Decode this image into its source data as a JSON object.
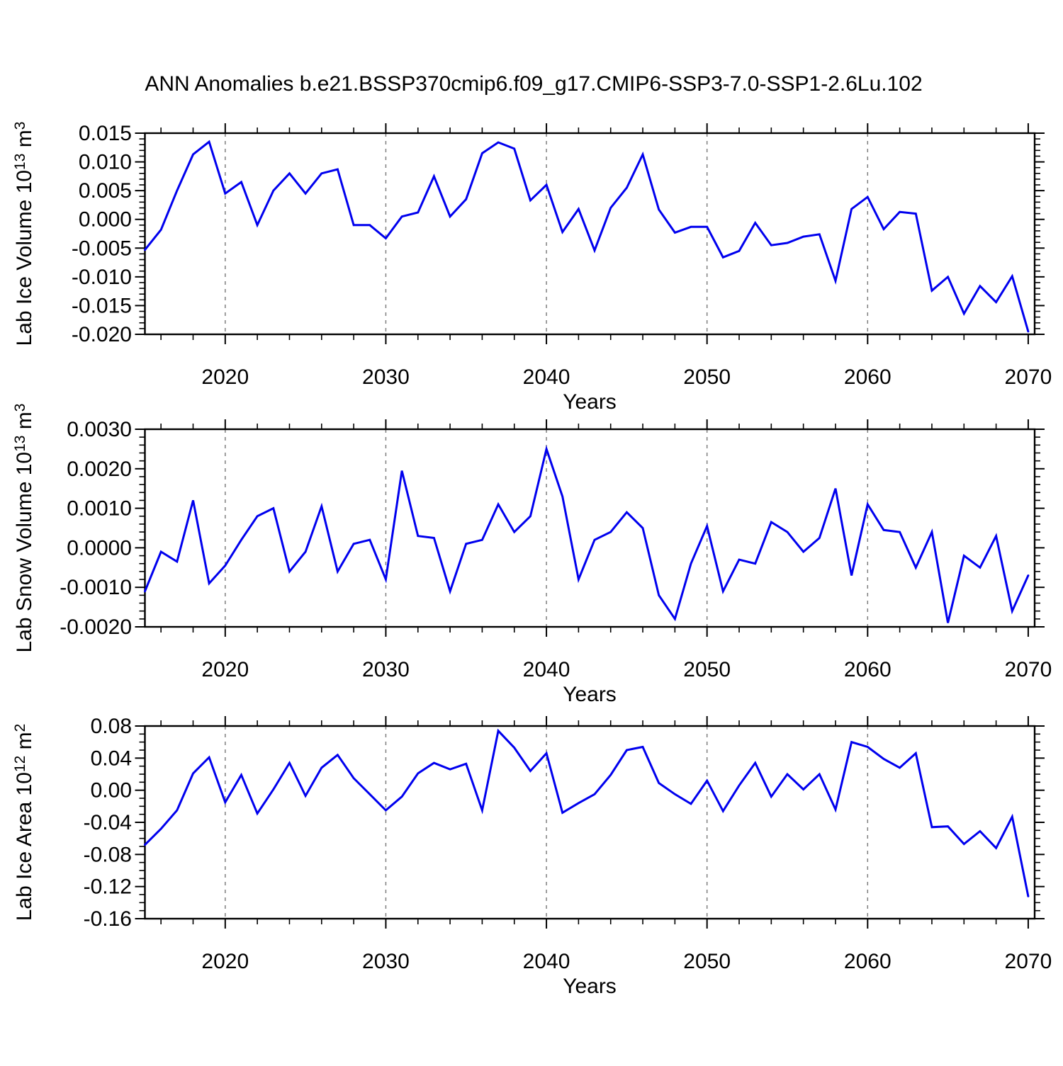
{
  "title": "ANN Anomalies b.e21.BSSP370cmip6.f09_g17.CMIP6-SSP3-7.0-SSP1-2.6Lu.102",
  "colors": {
    "line": "#0000ee",
    "grid": "#7f7f7f",
    "axis": "#000000",
    "background": "#ffffff"
  },
  "chart_data": {
    "type": "line",
    "title": "ANN Anomalies b.e21.BSSP370cmip6.f09_g17.CMIP6-SSP3-7.0-SSP1-2.6Lu.102",
    "xlabel": "Years",
    "x": [
      2015,
      2016,
      2017,
      2018,
      2019,
      2020,
      2021,
      2022,
      2023,
      2024,
      2025,
      2026,
      2027,
      2028,
      2029,
      2030,
      2031,
      2032,
      2033,
      2034,
      2035,
      2036,
      2037,
      2038,
      2039,
      2040,
      2041,
      2042,
      2043,
      2044,
      2045,
      2046,
      2047,
      2048,
      2049,
      2050,
      2051,
      2052,
      2053,
      2054,
      2055,
      2056,
      2057,
      2058,
      2059,
      2060,
      2061,
      2062,
      2063,
      2064,
      2065,
      2066,
      2067,
      2068,
      2069,
      2070
    ],
    "x_axis": {
      "xlim": [
        2015,
        2070.4
      ],
      "major_tick_years": [
        2020,
        2030,
        2040,
        2050,
        2060,
        2070
      ],
      "major_tick_labels": [
        "2020",
        "2030",
        "2040",
        "2050",
        "2060",
        "2070"
      ],
      "minor_step": 2,
      "grid_years": [
        2020,
        2030,
        2040,
        2050,
        2060
      ],
      "grid_on": true
    },
    "legend": null,
    "panels": [
      {
        "name": "lab-ice-volume",
        "ylabel": "Lab Ice Volume 10^13 m^3",
        "ylabel_segments": [
          {
            "t": "Lab Ice Volume 10",
            "sup": false
          },
          {
            "t": "13",
            "sup": true
          },
          {
            "t": " m",
            "sup": false
          },
          {
            "t": "3",
            "sup": true
          }
        ],
        "ylim": [
          -0.02,
          0.015
        ],
        "y_major_step": 0.005,
        "y_minor_step": 0.001,
        "ytick_labels": [
          "0.015",
          "0.010",
          "0.005",
          "0.000",
          "-0.005",
          "-0.010",
          "-0.015",
          "-0.020"
        ],
        "values": [
          -0.0053,
          -0.0018,
          0.005,
          0.0113,
          0.0135,
          0.0045,
          0.0065,
          -0.001,
          0.005,
          0.008,
          0.0045,
          0.008,
          0.0087,
          -0.001,
          -0.001,
          -0.0033,
          0.0005,
          0.0012,
          0.0075,
          0.0005,
          0.0035,
          0.0115,
          0.0134,
          0.0123,
          0.0033,
          0.006,
          -0.0022,
          0.0018,
          -0.0054,
          0.002,
          0.0055,
          0.0113,
          0.0017,
          -0.0023,
          -0.0013,
          -0.0013,
          -0.0066,
          -0.0055,
          -0.0006,
          -0.0045,
          -0.0041,
          -0.003,
          -0.0026,
          -0.0107,
          0.0018,
          0.0039,
          -0.0017,
          0.0013,
          0.001,
          -0.0124,
          -0.01,
          -0.0164,
          -0.0116,
          -0.0144,
          -0.0099,
          -0.0195
        ]
      },
      {
        "name": "lab-snow-volume",
        "ylabel": "Lab Snow Volume 10^13 m^3",
        "ylabel_segments": [
          {
            "t": "Lab Snow Volume 10",
            "sup": false
          },
          {
            "t": "13",
            "sup": true
          },
          {
            "t": " m",
            "sup": false
          },
          {
            "t": "3",
            "sup": true
          }
        ],
        "ylim": [
          -0.002,
          0.003
        ],
        "y_major_step": 0.001,
        "y_minor_step": 0.0002,
        "ytick_labels": [
          "0.0030",
          "0.0020",
          "0.0010",
          "0.0000",
          "-0.0010",
          "-0.0020"
        ],
        "values": [
          -0.0011,
          -0.0001,
          -0.00035,
          0.0012,
          -0.0009,
          -0.00045,
          0.0002,
          0.0008,
          0.001,
          -0.0006,
          -0.0001,
          0.00105,
          -0.0006,
          0.0001,
          0.0002,
          -0.0008,
          0.00195,
          0.0003,
          0.00025,
          -0.0011,
          0.0001,
          0.0002,
          0.0011,
          0.0004,
          0.0008,
          0.0025,
          0.0013,
          -0.0008,
          0.0002,
          0.0004,
          0.0009,
          0.0005,
          -0.0012,
          -0.0018,
          -0.0004,
          0.00055,
          -0.0011,
          -0.0003,
          -0.0004,
          0.00065,
          0.0004,
          -0.0001,
          0.00025,
          0.0015,
          -0.0007,
          0.0011,
          0.00045,
          0.0004,
          -0.0005,
          0.0004,
          -0.0019,
          -0.0002,
          -0.0005,
          0.0003,
          -0.0016,
          -0.0007
        ]
      },
      {
        "name": "lab-ice-area",
        "ylabel": "Lab Ice Area 10^12 m^2",
        "ylabel_segments": [
          {
            "t": "Lab Ice Area 10",
            "sup": false
          },
          {
            "t": "12",
            "sup": true
          },
          {
            "t": " m",
            "sup": false
          },
          {
            "t": "2",
            "sup": true
          }
        ],
        "ylim": [
          -0.16,
          0.08
        ],
        "y_major_step": 0.04,
        "y_minor_step": 0.01,
        "ytick_labels": [
          "0.08",
          "0.04",
          "0.00",
          "-0.04",
          "-0.08",
          "-0.12",
          "-0.16"
        ],
        "values": [
          -0.068,
          -0.048,
          -0.025,
          0.021,
          0.041,
          -0.015,
          0.019,
          -0.029,
          0.001,
          0.034,
          -0.007,
          0.028,
          0.044,
          0.015,
          -0.005,
          -0.025,
          -0.008,
          0.021,
          0.034,
          0.026,
          0.033,
          -0.025,
          0.074,
          0.053,
          0.024,
          0.046,
          -0.028,
          -0.016,
          -0.005,
          0.019,
          0.05,
          0.054,
          0.009,
          -0.005,
          -0.017,
          0.012,
          -0.026,
          0.006,
          0.034,
          -0.008,
          0.02,
          0.001,
          0.02,
          -0.024,
          0.06,
          0.054,
          0.039,
          0.028,
          0.046,
          -0.046,
          -0.045,
          -0.067,
          -0.051,
          -0.072,
          -0.033,
          -0.132
        ]
      }
    ]
  }
}
